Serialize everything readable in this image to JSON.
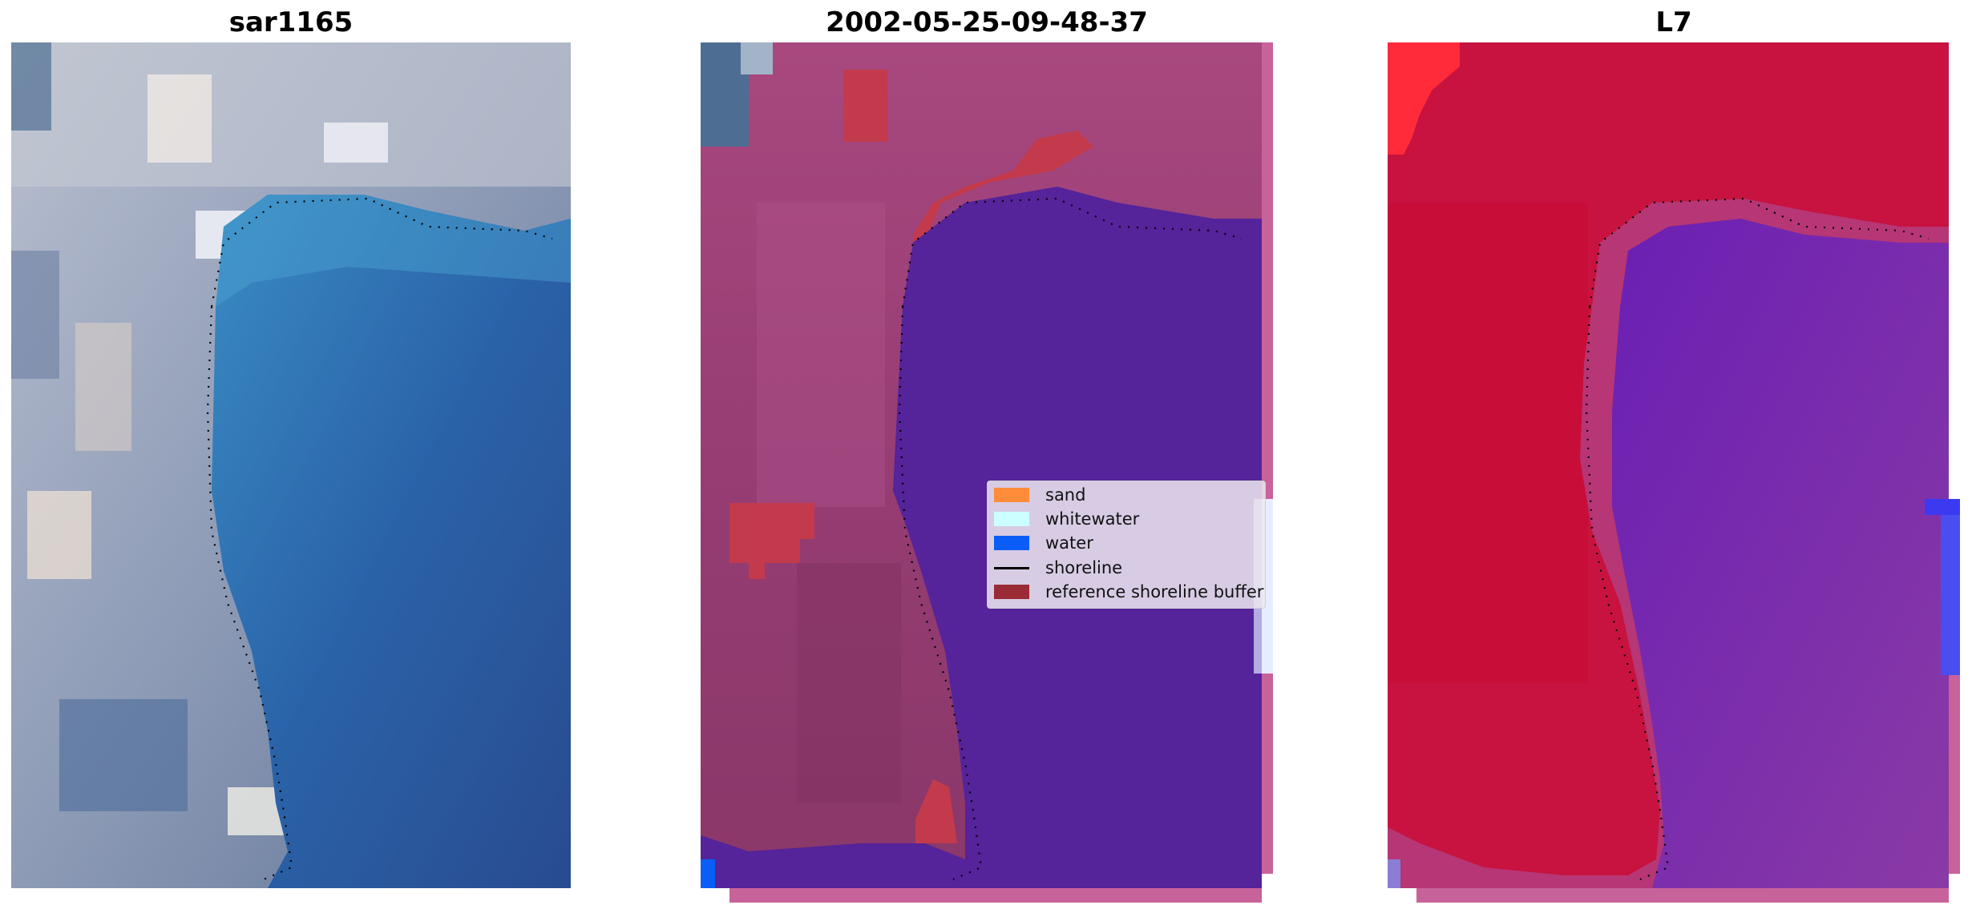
{
  "panels": [
    {
      "id": "rgb",
      "title": "sar1165"
    },
    {
      "id": "classified",
      "title": "2002-05-25-09-48-37"
    },
    {
      "id": "index",
      "title": "L7"
    }
  ],
  "legend": {
    "items": [
      {
        "label": "sand",
        "color": "#ff8c3a"
      },
      {
        "label": "whitewater",
        "color": "#ccffff"
      },
      {
        "label": "water",
        "color": "#0a5ef7"
      },
      {
        "label": "shoreline",
        "color": "#000000"
      },
      {
        "label": "reference shoreline buffer",
        "color": "#9a2a33"
      }
    ]
  },
  "colors": {
    "rgb_water": "#2a62a8",
    "rgb_land": "#9aa7bf",
    "class_water": "#55239a",
    "class_land": "#9a3f78",
    "index_water": "#7a2fa6",
    "index_land": "#c8123f",
    "buffer": "#c23a4b"
  }
}
